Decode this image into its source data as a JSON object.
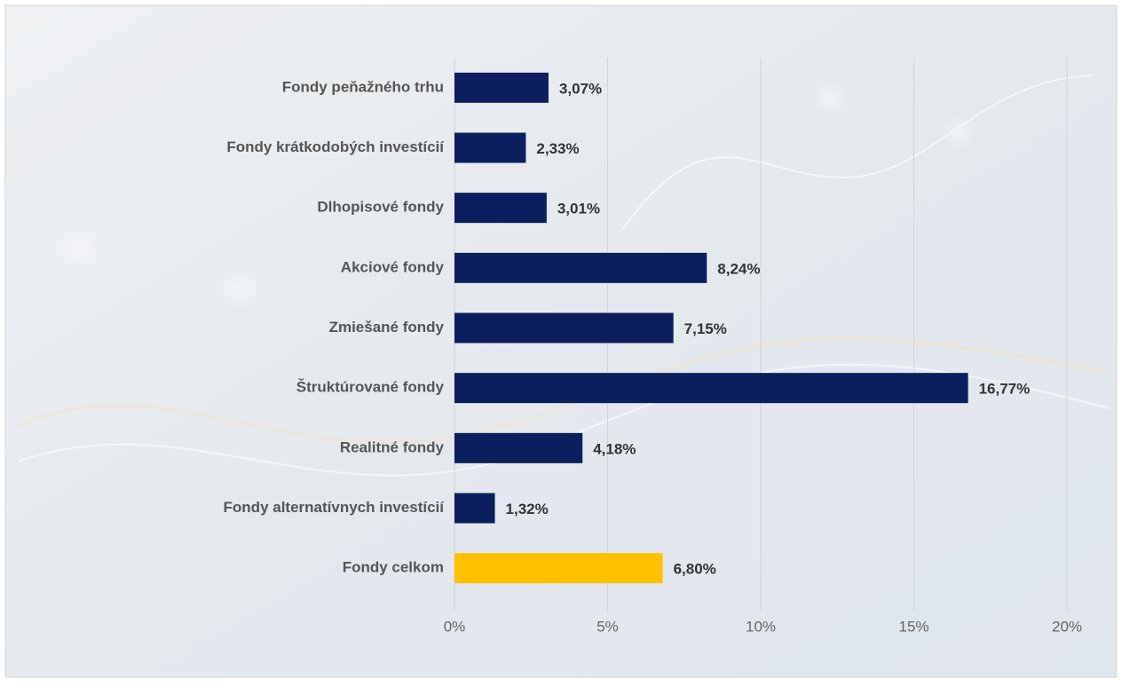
{
  "chart_data": {
    "type": "barh",
    "categories": [
      "Fondy peňažného trhu",
      "Fondy krátkodobých investícií",
      "Dlhopisové fondy",
      "Akciové fondy",
      "Zmiešané fondy",
      "Štruktúrované fondy",
      "Realitné fondy",
      "Fondy alternatívnych investícií",
      "Fondy celkom"
    ],
    "values": [
      3.07,
      2.33,
      3.01,
      8.24,
      7.15,
      16.77,
      4.18,
      1.32,
      6.8
    ],
    "value_labels": [
      "3,07%",
      "2,33%",
      "3,01%",
      "8,24%",
      "7,15%",
      "16,77%",
      "4,18%",
      "1,32%",
      "6,80%"
    ],
    "colors": [
      "#0b1f5e",
      "#0b1f5e",
      "#0b1f5e",
      "#0b1f5e",
      "#0b1f5e",
      "#0b1f5e",
      "#0b1f5e",
      "#0b1f5e",
      "#ffc000"
    ],
    "xlim": [
      0,
      20
    ],
    "xticks": [
      {
        "value": 0,
        "label": "0%"
      },
      {
        "value": 5,
        "label": "5%"
      },
      {
        "value": 10,
        "label": "10%"
      },
      {
        "value": 15,
        "label": "15%"
      },
      {
        "value": 20,
        "label": "20%"
      }
    ],
    "grid": true
  }
}
